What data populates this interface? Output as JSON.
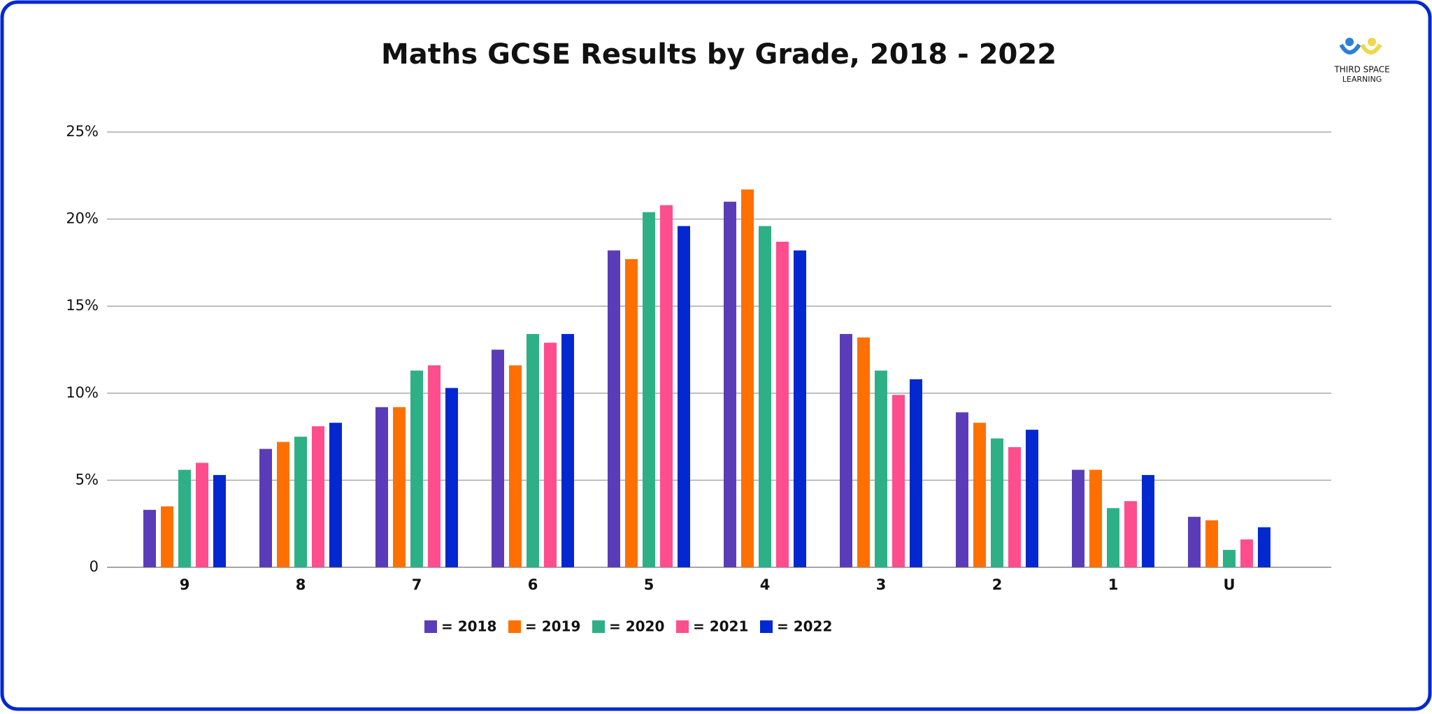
{
  "chart_data": {
    "type": "bar",
    "title": "Maths GCSE Results by Grade, 2018 - 2022",
    "categories": [
      "9",
      "8",
      "7",
      "6",
      "5",
      "4",
      "3",
      "2",
      "1",
      "U"
    ],
    "series": [
      {
        "name": "= 2018",
        "color": "#5b3cb8",
        "values": [
          3.3,
          6.8,
          9.2,
          12.5,
          18.2,
          21.0,
          13.4,
          8.9,
          5.6,
          2.9
        ]
      },
      {
        "name": "= 2019",
        "color": "#ff7000",
        "values": [
          3.5,
          7.2,
          9.2,
          11.6,
          17.7,
          21.7,
          13.2,
          8.3,
          5.6,
          2.7
        ]
      },
      {
        "name": "= 2020",
        "color": "#2eb086",
        "values": [
          5.6,
          7.5,
          11.3,
          13.4,
          20.4,
          19.6,
          11.3,
          7.4,
          3.4,
          1.0
        ]
      },
      {
        "name": "= 2021",
        "color": "#ff4d8d",
        "values": [
          6.0,
          8.1,
          11.6,
          12.9,
          20.8,
          18.7,
          9.9,
          6.9,
          3.8,
          1.6
        ]
      },
      {
        "name": "= 2022",
        "color": "#0328d0",
        "values": [
          5.3,
          8.3,
          10.3,
          13.4,
          19.6,
          18.2,
          10.8,
          7.9,
          5.3,
          2.3
        ]
      }
    ],
    "ylim": [
      0,
      25
    ],
    "yticks": [
      0,
      {
        "value": 5,
        "label": "5%"
      },
      {
        "value": 10,
        "label": "10%"
      },
      {
        "value": 15,
        "label": "15%"
      },
      {
        "value": 20,
        "label": "20%"
      },
      {
        "value": 25,
        "label": "25%"
      }
    ],
    "grid": true
  },
  "logo": {
    "line1": "THIRD SPACE",
    "line2": "LEARNING"
  }
}
